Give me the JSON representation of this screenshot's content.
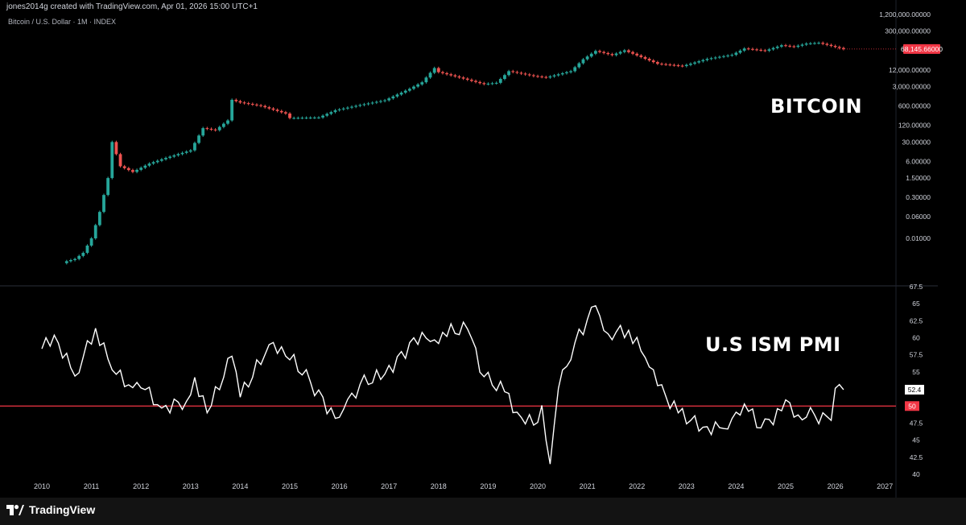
{
  "header": {
    "attribution": "jones2014g created with TradingView.com, Apr 01, 2026 15:00 UTC+1",
    "symbol": "Bitcoin / U.S. Dollar · 1M · INDEX"
  },
  "footer": {
    "brand": "TradingView",
    "logo_icon": "tradingview-logo-icon"
  },
  "colors": {
    "up": "#26a69a",
    "down": "#ef5350",
    "line": "#ffffff",
    "ref": "#f23645",
    "axis_text": "#d1d4dc",
    "divider": "#2a2e39",
    "badge": "#f23645"
  },
  "chart_data": [
    {
      "type": "candlestick",
      "label": "BITCOIN",
      "scale": "log",
      "ylim": [
        0.0005,
        1300000
      ],
      "y_ticks": [
        "1,200,000.00000",
        "300,000.00000",
        "68,145.66000",
        "12,000.00000",
        "3,000.00000",
        "600.00000",
        "120.00000",
        "30.00000",
        "6.00000",
        "1.50000",
        "0.30000",
        "0.06000",
        "0.01000"
      ],
      "y_tick_values": [
        1200000,
        300000,
        68145.66,
        12000,
        3000,
        600,
        120,
        30,
        6,
        1.5,
        0.3,
        0.06,
        0.01
      ],
      "last_price": 68145.66,
      "last_price_label": "68,145.66000",
      "anchors": [
        [
          "2010-07",
          0.0015
        ],
        [
          "2010-09",
          0.0018
        ],
        [
          "2010-11",
          0.003
        ],
        [
          "2011-01",
          0.01
        ],
        [
          "2011-03",
          0.09
        ],
        [
          "2011-05",
          1.5
        ],
        [
          "2011-06",
          30
        ],
        [
          "2011-08",
          4
        ],
        [
          "2011-11",
          2.5
        ],
        [
          "2012-03",
          5
        ],
        [
          "2012-07",
          8
        ],
        [
          "2012-10",
          11
        ],
        [
          "2013-01",
          15
        ],
        [
          "2013-04",
          95
        ],
        [
          "2013-07",
          80
        ],
        [
          "2013-10",
          180
        ],
        [
          "2013-11",
          1000
        ],
        [
          "2014-01",
          800
        ],
        [
          "2014-06",
          600
        ],
        [
          "2014-12",
          320
        ],
        [
          "2015-01",
          220
        ],
        [
          "2015-08",
          230
        ],
        [
          "2015-12",
          420
        ],
        [
          "2016-06",
          650
        ],
        [
          "2016-12",
          960
        ],
        [
          "2017-06",
          2500
        ],
        [
          "2017-09",
          4300
        ],
        [
          "2017-12",
          14000
        ],
        [
          "2018-01",
          10000
        ],
        [
          "2018-06",
          6400
        ],
        [
          "2018-11",
          4000
        ],
        [
          "2018-12",
          3700
        ],
        [
          "2019-03",
          4100
        ],
        [
          "2019-06",
          10800
        ],
        [
          "2019-12",
          7200
        ],
        [
          "2020-03",
          6400
        ],
        [
          "2020-09",
          10800
        ],
        [
          "2020-12",
          29000
        ],
        [
          "2021-03",
          58000
        ],
        [
          "2021-07",
          41000
        ],
        [
          "2021-10",
          61000
        ],
        [
          "2021-12",
          46000
        ],
        [
          "2022-06",
          20000
        ],
        [
          "2022-12",
          16500
        ],
        [
          "2023-06",
          30000
        ],
        [
          "2023-12",
          42000
        ],
        [
          "2024-03",
          71000
        ],
        [
          "2024-08",
          59000
        ],
        [
          "2024-12",
          93000
        ],
        [
          "2025-03",
          82000
        ],
        [
          "2025-06",
          107000
        ],
        [
          "2025-09",
          114000
        ],
        [
          "2025-12",
          88000
        ],
        [
          "2026-03",
          68145.66
        ]
      ]
    },
    {
      "type": "line",
      "label": "U.S ISM PMI",
      "ylim": [
        40,
        67.5
      ],
      "y_ticks": [
        "67.5",
        "65",
        "62.5",
        "60",
        "57.5",
        "55",
        "52.4",
        "50",
        "47.5",
        "45",
        "42.5",
        "40"
      ],
      "y_tick_values": [
        67.5,
        65,
        62.5,
        60,
        57.5,
        55,
        52.4,
        50,
        47.5,
        45,
        42.5,
        40
      ],
      "reference_line": 50,
      "last_value": 52.4,
      "last_value_label": "52.4",
      "anchors": [
        [
          "2010-01",
          58.4
        ],
        [
          "2010-04",
          60.4
        ],
        [
          "2010-09",
          54.4
        ],
        [
          "2011-02",
          61.4
        ],
        [
          "2011-06",
          55.3
        ],
        [
          "2011-11",
          52.7
        ],
        [
          "2012-02",
          52.4
        ],
        [
          "2012-06",
          49.7
        ],
        [
          "2012-12",
          50.7
        ],
        [
          "2013-02",
          54.2
        ],
        [
          "2013-05",
          49.0
        ],
        [
          "2013-11",
          57.3
        ],
        [
          "2014-01",
          51.3
        ],
        [
          "2014-08",
          59.0
        ],
        [
          "2014-11",
          58.7
        ],
        [
          "2015-06",
          53.5
        ],
        [
          "2015-12",
          48.2
        ],
        [
          "2016-02",
          49.5
        ],
        [
          "2016-06",
          53.2
        ],
        [
          "2016-12",
          54.7
        ],
        [
          "2017-09",
          60.8
        ],
        [
          "2017-12",
          59.7
        ],
        [
          "2018-02",
          60.8
        ],
        [
          "2018-08",
          61.3
        ],
        [
          "2018-12",
          54.3
        ],
        [
          "2019-05",
          52.1
        ],
        [
          "2019-08",
          49.1
        ],
        [
          "2019-12",
          47.2
        ],
        [
          "2020-02",
          50.1
        ],
        [
          "2020-04",
          41.5
        ],
        [
          "2020-06",
          52.6
        ],
        [
          "2020-10",
          59.3
        ],
        [
          "2021-03",
          64.7
        ],
        [
          "2021-06",
          60.6
        ],
        [
          "2021-11",
          61.1
        ],
        [
          "2022-03",
          57.1
        ],
        [
          "2022-06",
          53.0
        ],
        [
          "2022-11",
          49.0
        ],
        [
          "2023-05",
          46.9
        ],
        [
          "2023-10",
          46.7
        ],
        [
          "2024-01",
          49.1
        ],
        [
          "2024-03",
          50.3
        ],
        [
          "2024-07",
          46.8
        ],
        [
          "2024-12",
          49.3
        ],
        [
          "2025-01",
          50.9
        ],
        [
          "2025-04",
          48.7
        ],
        [
          "2025-08",
          48.7
        ],
        [
          "2025-12",
          47.9
        ],
        [
          "2026-01",
          52.6
        ],
        [
          "2026-03",
          52.4
        ]
      ]
    }
  ],
  "x_axis": {
    "labels": [
      "2010",
      "2011",
      "2012",
      "2013",
      "2014",
      "2015",
      "2016",
      "2017",
      "2018",
      "2019",
      "2020",
      "2021",
      "2022",
      "2023",
      "2024",
      "2025",
      "2026",
      "2027"
    ]
  }
}
